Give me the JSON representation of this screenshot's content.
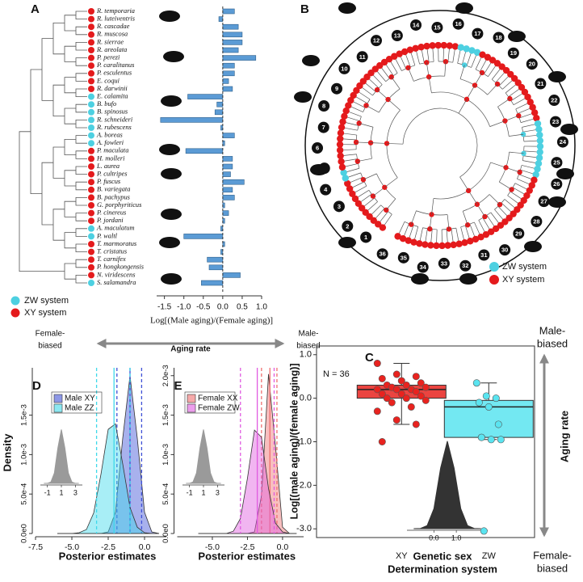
{
  "figure": {
    "aging_arrow": {
      "left": [
        "Female-",
        "biased"
      ],
      "center": "Aging rate",
      "right": [
        "Male-",
        "biased"
      ]
    },
    "side_arrow": {
      "top": [
        "Male-",
        "biased"
      ],
      "center": "Aging rate",
      "bottom": [
        "Female-",
        "biased"
      ]
    }
  },
  "chart_data": [
    {
      "type": "barh",
      "panel": "A",
      "categories": [
        "R. temporaria",
        "R. luteiventris",
        "R. cascadae",
        "R. muscosa",
        "R. sierrae",
        "R. areolata",
        "P. perezi",
        "P. caralitanus",
        "P. esculentus",
        "E. coqui",
        "R. darwinii",
        "E. calamita",
        "B. bufo",
        "B. spinosus",
        "R. schneideri",
        "R. rubescens",
        "A. boreas",
        "A. fowleri",
        "P. maculata",
        "H. molleri",
        "L. aurea",
        "P. cultripes",
        "P. fuscus",
        "B. variegata",
        "B. pachypus",
        "G. porphyriticus",
        "P. cinereus",
        "P. jordani",
        "A. maculatum",
        "P. waltl",
        "T. marmoratus",
        "T. cristatus",
        "T. carnifex",
        "P. hongkongensis",
        "N. viridescens",
        "S. salamandra"
      ],
      "values": [
        0.3,
        -0.1,
        0.4,
        0.5,
        0.5,
        0.4,
        0.85,
        0.3,
        0.3,
        0.15,
        0.25,
        -0.9,
        -0.15,
        -0.2,
        -1.6,
        -0.05,
        0.3,
        0.05,
        -0.95,
        0.25,
        0.25,
        0.2,
        0.55,
        0.25,
        0.3,
        0.05,
        0.15,
        0.05,
        -0.05,
        -1.0,
        0.05,
        -0.05,
        -0.4,
        -0.35,
        0.45,
        -0.55
      ],
      "dot_colors": [
        "#e41a1c",
        "#e41a1c",
        "#e41a1c",
        "#e41a1c",
        "#e41a1c",
        "#e41a1c",
        "#e41a1c",
        "#e41a1c",
        "#e41a1c",
        "#e41a1c",
        "#e41a1c",
        "#4dd0e1",
        "#4dd0e1",
        "#4dd0e1",
        "#4dd0e1",
        "#4dd0e1",
        "#4dd0e1",
        "#4dd0e1",
        "#e41a1c",
        "#e41a1c",
        "#e41a1c",
        "#e41a1c",
        "#e41a1c",
        "#e41a1c",
        "#e41a1c",
        "#e41a1c",
        "#e41a1c",
        "#e41a1c",
        "#4dd0e1",
        "#4dd0e1",
        "#e41a1c",
        "#e41a1c",
        "#e41a1c",
        "#e41a1c",
        "#e41a1c",
        "#4dd0e1"
      ],
      "color": "#5b9bd5",
      "xlim": [
        -1.7,
        1.0
      ],
      "xticks": [
        -1.5,
        {
          "value": -1,
          "label": "-1.0"
        },
        -0.5,
        {
          "value": 0,
          "label": "0.0"
        },
        0.5,
        {
          "value": 1,
          "label": "1.0"
        }
      ],
      "xlabel": "Log[(Male aging)/(Female aging)]",
      "legend": [
        {
          "name": "ZW system",
          "color": "#4dd0e1"
        },
        {
          "name": "XY system",
          "color": "#e41a1c"
        }
      ]
    },
    {
      "type": "tree",
      "panel": "B",
      "tip_labels": [
        1,
        2,
        3,
        4,
        5,
        6,
        7,
        8,
        9,
        10,
        11,
        12,
        13,
        14,
        15,
        16,
        17,
        18,
        19,
        20,
        21,
        22,
        23,
        24,
        25,
        26,
        27,
        28,
        29,
        30,
        31,
        32,
        33,
        34,
        35,
        36
      ],
      "legend": [
        {
          "name": "ZW system",
          "color": "#4dd0e1"
        },
        {
          "name": "XY system",
          "color": "#e41a1c"
        }
      ]
    },
    {
      "type": "density",
      "panel": "D",
      "x": [
        -6,
        -5.5,
        -5,
        -4.5,
        -4,
        -3.5,
        -3,
        -2.5,
        -2,
        -1.5,
        -1,
        -0.5,
        0,
        0.5,
        1
      ],
      "series": [
        {
          "name": "Male XY",
          "color": "#3f51d6",
          "values": [
            0,
            0,
            0,
            0,
            0,
            0,
            0,
            2e-05,
            0.00027,
            0.00121,
            0.002,
            0.00121,
            0.00027,
            2e-05,
            0
          ],
          "interval": [
            -1.9,
            -1.0,
            -0.2
          ]
        },
        {
          "name": "Male ZZ",
          "color": "#3fd9ea",
          "values": [
            0,
            0,
            0,
            1e-05,
            5e-05,
            0.00026,
            0.00075,
            0.00132,
            0.00139,
            0.00088,
            0.00033,
            8e-05,
            1e-05,
            0,
            0
          ],
          "interval": [
            -3.3,
            -2.1,
            -1.0
          ]
        }
      ],
      "xlim": [
        -7.5,
        1.5
      ],
      "xticks": [
        -7.5,
        {
          "value": -5,
          "label": "-5.0"
        },
        -2.5,
        {
          "value": 0,
          "label": "0.0"
        }
      ],
      "ylim": [
        0,
        0.0021
      ],
      "yticks": [
        {
          "value": 0,
          "label": "0.0e0"
        },
        {
          "value": 0.0005,
          "label": "5.0e-4"
        },
        {
          "value": 0.001,
          "label": "1.0e-3"
        },
        {
          "value": 0.0015,
          "label": "1.5e-3"
        }
      ],
      "ylabel": "Density",
      "xlabel": "Posterior estimates",
      "inset": {
        "x": [
          -1.5,
          -1,
          -0.5,
          0,
          0.5,
          1,
          1.5,
          2,
          2.5,
          3,
          3.5
        ],
        "values": [
          0,
          0.001,
          0.018,
          0.14,
          0.48,
          0.73,
          0.48,
          0.14,
          0.018,
          0.001,
          0
        ],
        "xlim": [
          -2,
          4
        ],
        "ylim": [
          0,
          0.8
        ],
        "xticks": [
          -1,
          1,
          3
        ],
        "color": "#9a9a9a"
      }
    },
    {
      "type": "density",
      "panel": "E",
      "x": [
        -6,
        -5.5,
        -5,
        -4.5,
        -4,
        -3.5,
        -3,
        -2.5,
        -2,
        -1.5,
        -1,
        -0.5,
        0,
        0.5,
        1
      ],
      "series": [
        {
          "name": "Female XX",
          "color": "#f07070",
          "values": [
            0,
            0,
            0,
            0,
            0,
            0,
            0,
            0,
            2e-05,
            0.00048,
            0.00202,
            0.0011,
            8e-05,
            0,
            0
          ],
          "interval": [
            -1.5,
            -0.9,
            -0.4
          ]
        },
        {
          "name": "Female ZW",
          "color": "#e05be0",
          "values": [
            0,
            0,
            0,
            0,
            0,
            3e-05,
            0.00019,
            0.0007,
            0.00131,
            0.00122,
            0.00057,
            0.00013,
            2e-05,
            0,
            0
          ],
          "interval": [
            -3.0,
            -1.8,
            -0.6
          ]
        }
      ],
      "xlim": [
        -7.5,
        1.5
      ],
      "xticks": [
        {
          "value": -5,
          "label": "-5.0"
        },
        -2.5,
        {
          "value": 0,
          "label": "0.0"
        }
      ],
      "ylim": [
        0,
        0.0021
      ],
      "yticks": [
        {
          "value": 0,
          "label": "0.0e0"
        },
        {
          "value": 0.0005,
          "label": "5.0e-4"
        },
        {
          "value": 0.001,
          "label": "1.0e-3"
        },
        {
          "value": 0.0015,
          "label": "1.5e-3"
        },
        {
          "value": 0.002,
          "label": "2.0e-3"
        }
      ],
      "xlabel": "Posterior estimates",
      "inset": {
        "x": [
          -1.5,
          -1,
          -0.5,
          0,
          0.5,
          1,
          1.5,
          2,
          2.5,
          3,
          3.5
        ],
        "values": [
          0,
          0.001,
          0.018,
          0.14,
          0.48,
          0.73,
          0.48,
          0.14,
          0.018,
          0.001,
          0
        ],
        "xlim": [
          -2,
          4
        ],
        "ylim": [
          0,
          0.8
        ],
        "xticks": [
          -1,
          1,
          3
        ],
        "color": "#9a9a9a"
      }
    },
    {
      "type": "box",
      "panel": "C",
      "note": "N = 36",
      "categories": [
        "XY",
        "ZW"
      ],
      "series": [
        {
          "color": "#e8231f",
          "points": [
            0.8,
            0.55,
            0.5,
            0.45,
            0.4,
            0.35,
            0.3,
            0.3,
            0.25,
            0.25,
            0.2,
            0.2,
            0.2,
            0.15,
            0.1,
            0.1,
            0.05,
            0.0,
            0.0,
            -0.05,
            -0.1,
            -0.2,
            -0.3,
            -0.5,
            -0.6,
            -1.0
          ],
          "min": -0.6,
          "q1": 0.0,
          "median": 0.2,
          "q3": 0.3,
          "max": 0.8
        },
        {
          "color": "#5ae4f0",
          "points": [
            0.35,
            0.05,
            0.0,
            -0.1,
            -0.2,
            -0.6,
            -0.9,
            -0.95,
            -0.95,
            -3.05
          ],
          "min": -0.95,
          "q1": -0.9,
          "median": -0.2,
          "q3": -0.05,
          "max": 0.35
        }
      ],
      "ylim": [
        -3.2,
        1.2
      ],
      "yticks": [
        {
          "value": 1,
          "label": "1.0"
        },
        {
          "value": 0,
          "label": "0.0"
        },
        {
          "value": -1,
          "label": "-1.0"
        },
        {
          "value": -2,
          "label": "-2.0"
        },
        {
          "value": -3,
          "label": "-3.0"
        }
      ],
      "ylabel": "Log[(male aging)/(female aging)]",
      "xlabel": [
        "Genetic sex",
        "Determination system"
      ],
      "inset": {
        "x": [
          -0.9,
          -0.6,
          -0.3,
          0,
          0.3,
          0.6,
          0.9,
          1.2,
          1.5,
          1.8,
          2.1
        ],
        "values": [
          0,
          0.003,
          0.04,
          0.26,
          0.79,
          1.14,
          0.79,
          0.26,
          0.04,
          0.003,
          0
        ],
        "xlim": [
          -1.2,
          2.4
        ],
        "ylim": [
          0,
          1.2
        ],
        "xticks": [
          {
            "value": 0,
            "label": "0.0"
          },
          {
            "value": 1,
            "label": "1.0"
          }
        ],
        "color": "#333333"
      }
    }
  ]
}
